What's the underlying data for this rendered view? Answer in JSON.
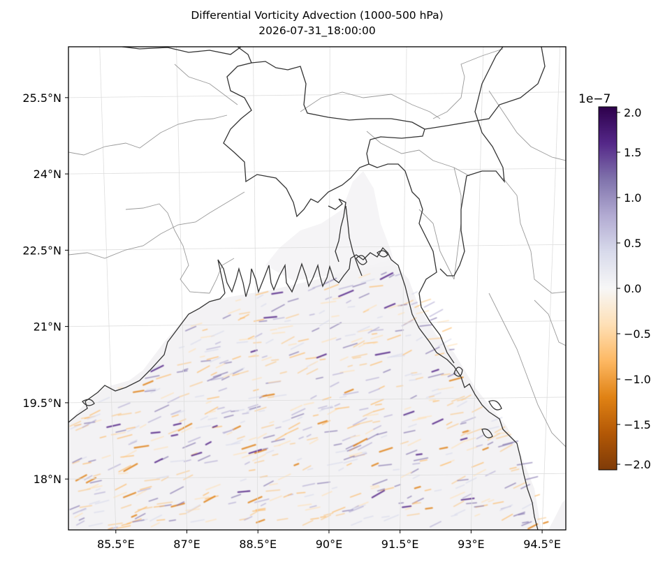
{
  "title": "Differential Vorticity Advection (1000-500 hPa)",
  "subtitle": "2026-07-31_18:00:00",
  "map": {
    "extent": {
      "lon_min": 84.5,
      "lon_max": 95.0,
      "lat_min": 17.0,
      "lat_max": 26.5
    },
    "lat_ticks": [
      {
        "value": 25.5,
        "label": "25.5°N"
      },
      {
        "value": 24.0,
        "label": "24°N"
      },
      {
        "value": 22.5,
        "label": "22.5°N"
      },
      {
        "value": 21.0,
        "label": "21°N"
      },
      {
        "value": 19.5,
        "label": "19.5°N"
      },
      {
        "value": 18.0,
        "label": "18°N"
      }
    ],
    "lon_ticks": [
      {
        "value": 85.5,
        "label": "85.5°E"
      },
      {
        "value": 87.0,
        "label": "87°E"
      },
      {
        "value": 88.5,
        "label": "88.5°E"
      },
      {
        "value": 90.0,
        "label": "90°E"
      },
      {
        "value": 91.5,
        "label": "91.5°E"
      },
      {
        "value": 93.0,
        "label": "93°E"
      },
      {
        "value": 94.5,
        "label": "94.5°E"
      }
    ],
    "field": "differential vorticity advection over the Bay of Bengal, values roughly between -2.0e-7 and 2.0e-7",
    "colors": {
      "coastline": "#333333",
      "state_borders": "#999999",
      "gridlines": "#dddddd",
      "land_background": "#ffffff"
    }
  },
  "colorbar": {
    "exponent_label": "1e−7",
    "min": -2.0,
    "max": 2.0,
    "ticks": [
      {
        "value": 2.0,
        "label": "2.0"
      },
      {
        "value": 1.5,
        "label": "1.5"
      },
      {
        "value": 1.0,
        "label": "1.0"
      },
      {
        "value": 0.5,
        "label": "0.5"
      },
      {
        "value": 0.0,
        "label": "0.0"
      },
      {
        "value": -0.5,
        "label": "−0.5"
      },
      {
        "value": -1.0,
        "label": "−1.0"
      },
      {
        "value": -1.5,
        "label": "−1.5"
      },
      {
        "value": -2.0,
        "label": "−2.0"
      }
    ],
    "colormap": [
      "#7f3b08",
      "#b35806",
      "#e08214",
      "#fdb863",
      "#fee0b6",
      "#f7f7f7",
      "#d8daeb",
      "#b2abd2",
      "#8073ac",
      "#542788",
      "#2d004b"
    ]
  }
}
